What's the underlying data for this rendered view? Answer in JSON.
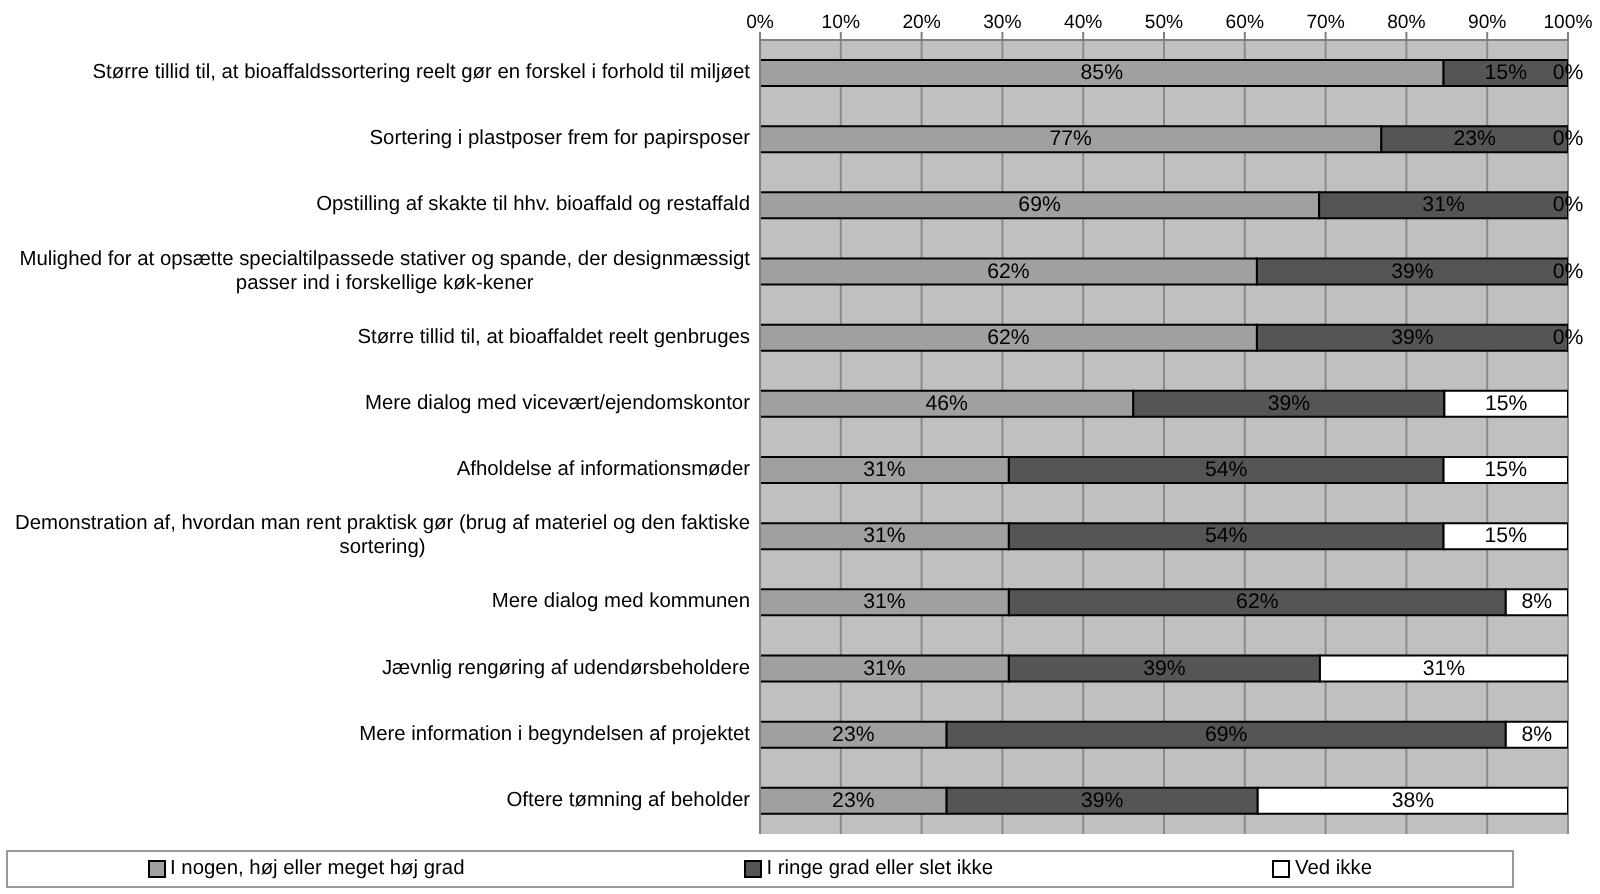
{
  "chart_data": {
    "type": "bar",
    "orientation": "horizontal",
    "stacked": true,
    "categories": [
      "Større tillid til, at bioaffaldssortering reelt gør en forskel i forhold til miljøet",
      "Sortering i plastposer frem for papirsposer",
      "Opstilling af skakte til hhv. bioaffald og restaffald",
      "Mulighed for at opsætte specialtilpassede stativer og spande, der designmæssigt passer ind i forskellige køk-kener",
      "Større tillid til, at bioaffaldet reelt genbruges",
      "Mere dialog med vicevært/ejendomskontor",
      "Afholdelse af informationsmøder",
      "Demonstration af, hvordan man rent praktisk gør (brug af materiel og den faktiske sortering)",
      "Mere dialog med kommunen",
      "Jævnlig rengøring af udendørsbeholdere",
      "Mere information i begyndelsen af projektet",
      "Oftere tømning af beholder"
    ],
    "series": [
      {
        "name": "I nogen, høj eller meget høj grad",
        "color": "#a0a0a0",
        "values": [
          84.6,
          76.9,
          69.2,
          61.5,
          61.5,
          46.2,
          30.8,
          30.8,
          30.8,
          30.8,
          23.1,
          23.1
        ],
        "value_labels": [
          "85%",
          "77%",
          "69%",
          "62%",
          "62%",
          "46%",
          "31%",
          "31%",
          "31%",
          "31%",
          "23%",
          "23%"
        ]
      },
      {
        "name": "I ringe grad eller slet ikke",
        "color": "#555555",
        "values": [
          15.4,
          23.1,
          30.8,
          38.5,
          38.5,
          38.5,
          53.8,
          53.8,
          61.5,
          38.5,
          69.2,
          38.5
        ],
        "value_labels": [
          "15%",
          "23%",
          "31%",
          "39%",
          "39%",
          "39%",
          "54%",
          "54%",
          "62%",
          "39%",
          "69%",
          "39%"
        ]
      },
      {
        "name": "Ved ikke",
        "color": "#ffffff",
        "values": [
          0,
          0,
          0,
          0,
          0,
          15.3,
          15.4,
          15.4,
          7.7,
          30.7,
          7.7,
          38.4
        ],
        "value_labels": [
          "0%",
          "0%",
          "0%",
          "0%",
          "0%",
          "15%",
          "15%",
          "15%",
          "8%",
          "31%",
          "8%",
          "38%"
        ]
      }
    ],
    "xlim": [
      0,
      100
    ],
    "xticks": [
      {
        "value": 0,
        "label": "0%"
      },
      {
        "value": 10,
        "label": "10%"
      },
      {
        "value": 20,
        "label": "20%"
      },
      {
        "value": 30,
        "label": "30%"
      },
      {
        "value": 40,
        "label": "40%"
      },
      {
        "value": 50,
        "label": "50%"
      },
      {
        "value": 60,
        "label": "60%"
      },
      {
        "value": 70,
        "label": "70%"
      },
      {
        "value": 80,
        "label": "80%"
      },
      {
        "value": 90,
        "label": "90%"
      },
      {
        "value": 100,
        "label": "100%"
      }
    ],
    "grid": "x",
    "legend": "bottom"
  }
}
